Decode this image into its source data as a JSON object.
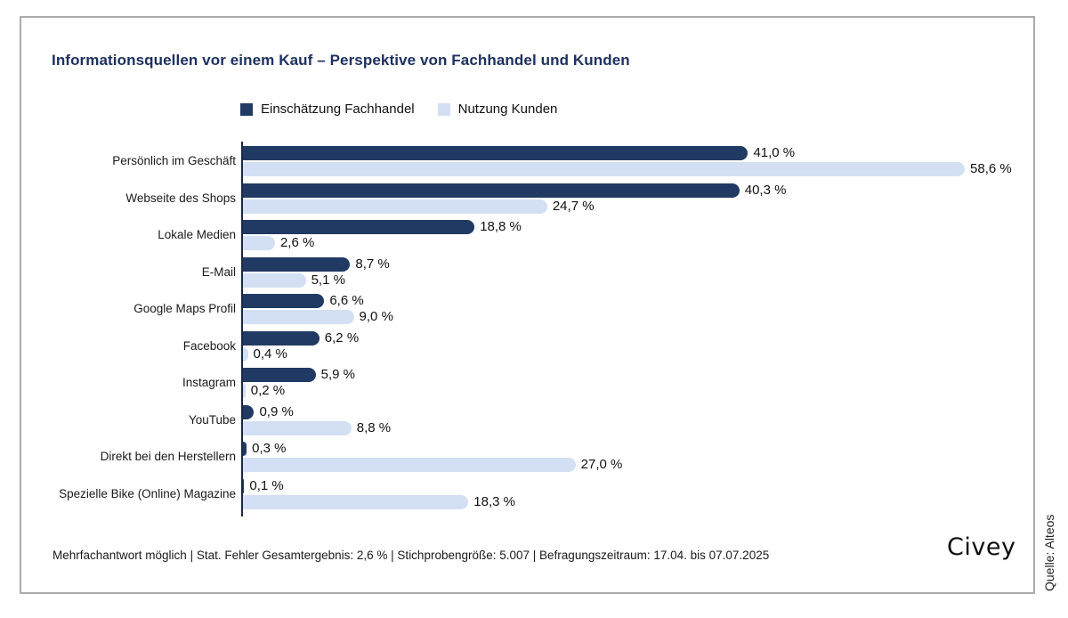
{
  "title": "Informationsquellen vor einem Kauf – Perspektive von Fachhandel und Kunden",
  "legend": [
    {
      "label": "Einschätzung Fachhandel",
      "color": "#213a63"
    },
    {
      "label": "Nutzung Kunden",
      "color": "#d3e0f3"
    }
  ],
  "footnote": "Mehrfachantwort möglich | Stat. Fehler Gesamtergebnis: 2,6 % | Stichprobengröße: 5.007 | Befragungszeitraum: 17.04. bis 07.07.2025",
  "brand": "Civey",
  "source": "Quelle: Alteos",
  "chart_data": {
    "type": "bar",
    "orientation": "horizontal",
    "title": "Informationsquellen vor einem Kauf – Perspektive von Fachhandel und Kunden",
    "categories": [
      "Persönlich im Geschäft",
      "Webseite des Shops",
      "Lokale Medien",
      "E-Mail",
      "Google Maps Profil",
      "Facebook",
      "Instagram",
      "YouTube",
      "Direkt bei den Herstellern",
      "Spezielle Bike (Online) Magazine"
    ],
    "series": [
      {
        "name": "Einschätzung Fachhandel",
        "color": "#213a63",
        "values": [
          41.0,
          40.3,
          18.8,
          8.7,
          6.6,
          6.2,
          5.9,
          0.9,
          0.3,
          0.1
        ],
        "labels": [
          "41,0 %",
          "40,3 %",
          "18,8 %",
          "8,7 %",
          "6,6 %",
          "6,2 %",
          "5,9 %",
          "0,9 %",
          "0,3 %",
          "0,1 %"
        ]
      },
      {
        "name": "Nutzung Kunden",
        "color": "#d3e0f3",
        "values": [
          58.6,
          24.7,
          2.6,
          5.1,
          9.0,
          0.4,
          0.2,
          8.8,
          27.0,
          18.3
        ],
        "labels": [
          "58,6 %",
          "24,7 %",
          "2,6 %",
          "5,1 %",
          "9,0 %",
          "0,4 %",
          "0,2 %",
          "8,8 %",
          "27,0 %",
          "18,3 %"
        ]
      }
    ],
    "xlim": [
      0,
      62
    ],
    "grid": false,
    "legend_position": "top",
    "unit": "%"
  }
}
